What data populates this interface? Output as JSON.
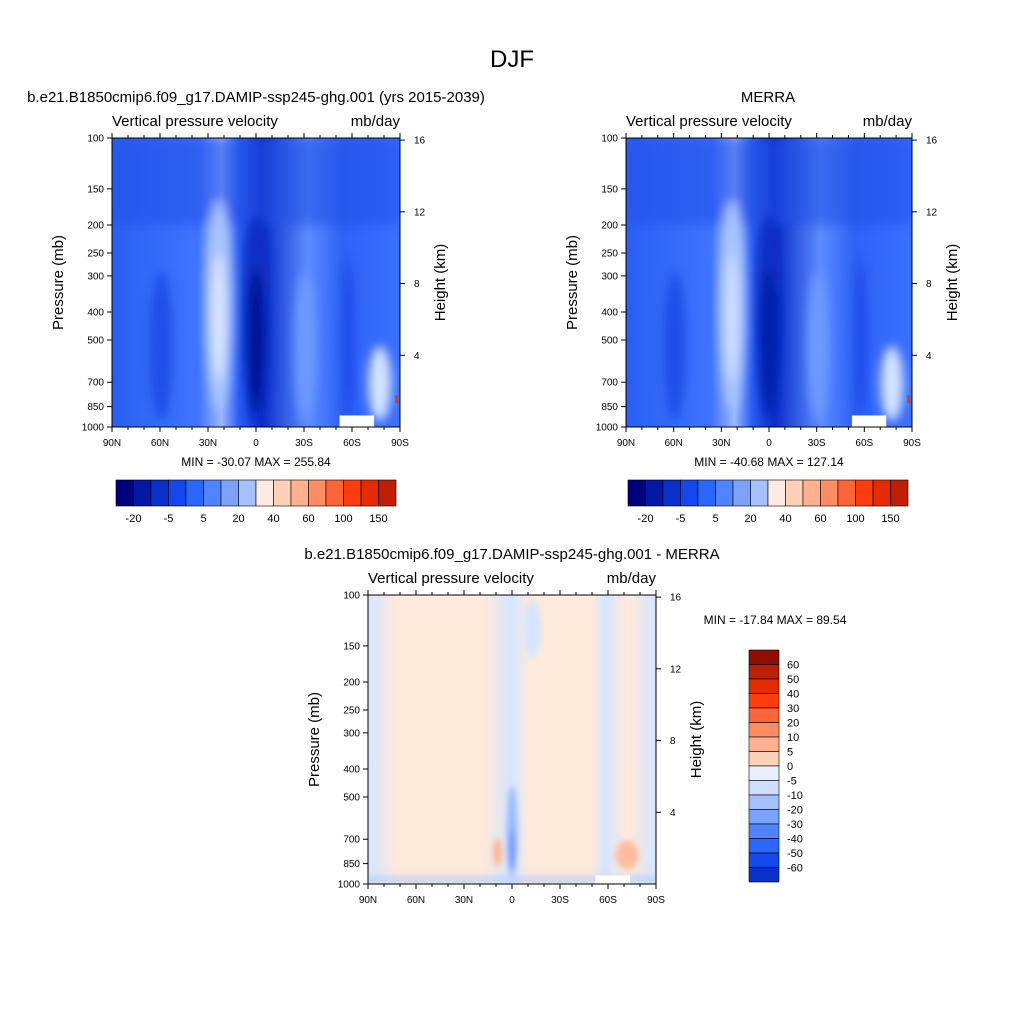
{
  "figure": {
    "title": "DJF",
    "colors": {
      "panel_cool_scale": [
        "#00007e",
        "#0418a4",
        "#0a30cc",
        "#1448ee",
        "#2a66ff",
        "#5083ff",
        "#7aa2ff",
        "#a4c0ff",
        "#cfdeff",
        "#e8f0ff"
      ],
      "panel_warm_scale": [
        "#ffeadf",
        "#ffd0b8",
        "#ffb190",
        "#ff8c63",
        "#ff6438",
        "#ff3c10",
        "#e52b00",
        "#bf1f00",
        "#8e0f00"
      ],
      "diff_light_blue": "#d4e6ff",
      "diff_light_orange": "#ffe9da"
    }
  },
  "chart_data": [
    {
      "type": "heatmap",
      "title": "b.e21.B1850cmip6.f09_g17.DAMIP-ssp245-ghg.001 (yrs 2015-2039)",
      "left_label": "Vertical pressure velocity",
      "right_label": "mb/day",
      "ylabel": "Pressure (mb)",
      "y2label": "Height (km)",
      "x_ticks": [
        "90N",
        "60N",
        "30N",
        "0",
        "30S",
        "60S",
        "90S"
      ],
      "x_values": [
        90,
        60,
        30,
        0,
        -30,
        -60,
        -90
      ],
      "y_ticks": [
        "100",
        "150",
        "200",
        "250",
        "300",
        "400",
        "500",
        "700",
        "850",
        "1000"
      ],
      "y_values": [
        100,
        150,
        200,
        250,
        300,
        400,
        500,
        700,
        850,
        1000
      ],
      "y2_ticks": [
        "16",
        "12",
        "8",
        "4"
      ],
      "y2_values": [
        16,
        12,
        8,
        4
      ],
      "minmax": "MIN = -30.07  MAX = 255.84",
      "min": -30.07,
      "max": 255.84,
      "colorbar_labels": [
        "-20",
        "-5",
        "5",
        "20",
        "40",
        "60",
        "100",
        "150"
      ],
      "colorbar_orientation": "horizontal"
    },
    {
      "type": "heatmap",
      "title": "MERRA",
      "left_label": "Vertical pressure velocity",
      "right_label": "mb/day",
      "ylabel": "Pressure (mb)",
      "y2label": "Height (km)",
      "x_ticks": [
        "90N",
        "60N",
        "30N",
        "0",
        "30S",
        "60S",
        "90S"
      ],
      "x_values": [
        90,
        60,
        30,
        0,
        -30,
        -60,
        -90
      ],
      "y_ticks": [
        "100",
        "150",
        "200",
        "250",
        "300",
        "400",
        "500",
        "700",
        "850",
        "1000"
      ],
      "y_values": [
        100,
        150,
        200,
        250,
        300,
        400,
        500,
        700,
        850,
        1000
      ],
      "y2_ticks": [
        "16",
        "12",
        "8",
        "4"
      ],
      "y2_values": [
        16,
        12,
        8,
        4
      ],
      "minmax": "MIN = -40.68  MAX = 127.14",
      "min": -40.68,
      "max": 127.14,
      "colorbar_labels": [
        "-20",
        "-5",
        "5",
        "20",
        "40",
        "60",
        "100",
        "150"
      ],
      "colorbar_orientation": "horizontal"
    },
    {
      "type": "heatmap",
      "title": "b.e21.B1850cmip6.f09_g17.DAMIP-ssp245-ghg.001 - MERRA",
      "left_label": "Vertical pressure velocity",
      "right_label": "mb/day",
      "ylabel": "Pressure (mb)",
      "y2label": "Height (km)",
      "x_ticks": [
        "90N",
        "60N",
        "30N",
        "0",
        "30S",
        "60S",
        "90S"
      ],
      "x_values": [
        90,
        60,
        30,
        0,
        -30,
        -60,
        -90
      ],
      "y_ticks": [
        "100",
        "150",
        "200",
        "250",
        "300",
        "400",
        "500",
        "700",
        "850",
        "1000"
      ],
      "y_values": [
        100,
        150,
        200,
        250,
        300,
        400,
        500,
        700,
        850,
        1000
      ],
      "y2_ticks": [
        "16",
        "12",
        "8",
        "4"
      ],
      "y2_values": [
        16,
        12,
        8,
        4
      ],
      "minmax": "MIN = -17.84  MAX =  89.54",
      "min": -17.84,
      "max": 89.54,
      "colorbar_labels": [
        "60",
        "50",
        "40",
        "30",
        "20",
        "10",
        "5",
        "0",
        "-5",
        "-10",
        "-20",
        "-30",
        "-40",
        "-50",
        "-60"
      ],
      "colorbar_orientation": "vertical"
    }
  ]
}
